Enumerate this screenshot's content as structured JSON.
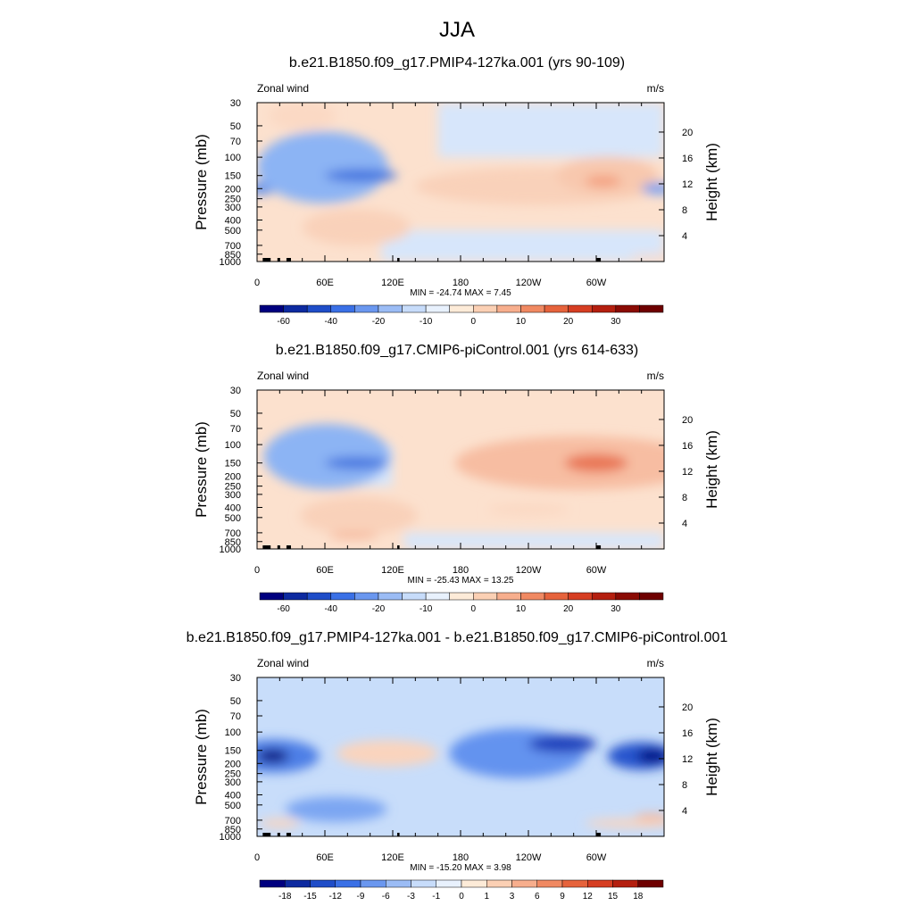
{
  "figure": {
    "title": "JJA"
  },
  "chart_data": [
    {
      "type": "heatmap",
      "title": "b.e21.B1850.f09_g17.PMIP4-127ka.001 (yrs 90-109)",
      "left_string": "Zonal wind",
      "right_string": "m/s",
      "xlabel": "",
      "ylabel": "Pressure (mb)",
      "y2label": "Height (km)",
      "x_ticks": [
        "0",
        "60E",
        "120E",
        "180",
        "120W",
        "60W"
      ],
      "x_range": [
        0,
        360
      ],
      "y_range_mb": [
        1000,
        30
      ],
      "y_ticks_mb": [
        "30",
        "50",
        "70",
        "100",
        "150",
        "200",
        "250",
        "300",
        "400",
        "500",
        "700",
        "850",
        "1000"
      ],
      "y2_ticks_km": [
        "20",
        "16",
        "12",
        "8",
        "4"
      ],
      "stats_label": "MIN = -24.74  MAX =   7.45",
      "min": -24.74,
      "max": 7.45,
      "colorbar_labels": [
        "-60",
        "-40",
        "-20",
        "-10",
        "0",
        "10",
        "20",
        "30"
      ],
      "colorbar_colors": [
        "#00007f",
        "#0d2aa0",
        "#1f4dc8",
        "#3a70e6",
        "#6a97ef",
        "#9bbcf5",
        "#c7dcfa",
        "#e8f1fd",
        "#fdebd8",
        "#fbd0b4",
        "#f7ae8d",
        "#f08962",
        "#e6633c",
        "#d63e22",
        "#b41f0f",
        "#8a0b04",
        "#6e0000"
      ],
      "anomalies": [
        {
          "lon": 4,
          "p": 200,
          "w": 12,
          "h": 50,
          "v": -10
        },
        {
          "lon": 58,
          "p": 125,
          "w": 58,
          "h": 165,
          "v": -6
        },
        {
          "lon": 92,
          "p": 150,
          "w": 32,
          "h": 42,
          "v": -12
        },
        {
          "lon": 88,
          "p": 470,
          "w": 48,
          "h": 360,
          "v": 4
        },
        {
          "lon": 250,
          "p": 190,
          "w": 110,
          "h": 150,
          "v": 4
        },
        {
          "lon": 310,
          "p": 150,
          "w": 45,
          "h": 120,
          "v": 5
        },
        {
          "lon": 306,
          "p": 170,
          "w": 16,
          "h": 40,
          "v": 9
        },
        {
          "lon": 354,
          "p": 200,
          "w": 14,
          "h": 50,
          "v": -8
        },
        {
          "lon": 40,
          "p": 40,
          "w": 30,
          "h": 35,
          "v": 3
        },
        {
          "lon": 350,
          "p": 900,
          "w": 20,
          "h": 100,
          "v": 3
        }
      ],
      "background_value": 2,
      "background_cells": [
        {
          "lon": [
            110,
            360
          ],
          "p": [
            1000,
            500
          ],
          "v": -1
        },
        {
          "lon": [
            160,
            360
          ],
          "p": [
            100,
            30
          ],
          "v": -1
        }
      ]
    },
    {
      "type": "heatmap",
      "title": "b.e21.B1850.f09_g17.CMIP6-piControl.001 (yrs 614-633)",
      "left_string": "Zonal wind",
      "right_string": "m/s",
      "xlabel": "",
      "ylabel": "Pressure (mb)",
      "y2label": "Height (km)",
      "x_ticks": [
        "0",
        "60E",
        "120E",
        "180",
        "120W",
        "60W"
      ],
      "x_range": [
        0,
        360
      ],
      "y_range_mb": [
        1000,
        30
      ],
      "y_ticks_mb": [
        "30",
        "50",
        "70",
        "100",
        "150",
        "200",
        "250",
        "300",
        "400",
        "500",
        "700",
        "850",
        "1000"
      ],
      "y2_ticks_km": [
        "20",
        "16",
        "12",
        "8",
        "4"
      ],
      "stats_label": "MIN = -25.43  MAX =  13.25",
      "min": -25.43,
      "max": 13.25,
      "colorbar_labels": [
        "-60",
        "-40",
        "-20",
        "-10",
        "0",
        "10",
        "20",
        "30"
      ],
      "colorbar_colors": [
        "#00007f",
        "#0d2aa0",
        "#1f4dc8",
        "#3a70e6",
        "#6a97ef",
        "#9bbcf5",
        "#c7dcfa",
        "#e8f1fd",
        "#fdebd8",
        "#fbd0b4",
        "#f7ae8d",
        "#f08962",
        "#e6633c",
        "#d63e22",
        "#b41f0f",
        "#8a0b04",
        "#6e0000"
      ],
      "anomalies": [
        {
          "lon": 62,
          "p": 130,
          "w": 56,
          "h": 160,
          "v": -6
        },
        {
          "lon": 88,
          "p": 150,
          "w": 28,
          "h": 40,
          "v": -12
        },
        {
          "lon": 90,
          "p": 480,
          "w": 52,
          "h": 380,
          "v": 4
        },
        {
          "lon": 85,
          "p": 750,
          "w": 22,
          "h": 80,
          "v": 8
        },
        {
          "lon": 285,
          "p": 150,
          "w": 110,
          "h": 160,
          "v": 6
        },
        {
          "lon": 300,
          "p": 150,
          "w": 28,
          "h": 60,
          "v": 12
        },
        {
          "lon": 240,
          "p": 420,
          "w": 36,
          "h": 120,
          "v": 3
        }
      ],
      "background_value": 2,
      "background_cells": [
        {
          "lon": [
            130,
            360
          ],
          "p": [
            1000,
            700
          ],
          "v": -1
        },
        {
          "lon": [
            40,
            120
          ],
          "p": [
            250,
            100
          ],
          "v": -1
        }
      ]
    },
    {
      "type": "heatmap",
      "title": "b.e21.B1850.f09_g17.PMIP4-127ka.001 - b.e21.B1850.f09_g17.CMIP6-piControl.001",
      "left_string": "Zonal wind",
      "right_string": "m/s",
      "xlabel": "",
      "ylabel": "Pressure (mb)",
      "y2label": "Height (km)",
      "x_ticks": [
        "0",
        "60E",
        "120E",
        "180",
        "120W",
        "60W"
      ],
      "x_range": [
        0,
        360
      ],
      "y_range_mb": [
        1000,
        30
      ],
      "y_ticks_mb": [
        "30",
        "50",
        "70",
        "100",
        "150",
        "200",
        "250",
        "300",
        "400",
        "500",
        "700",
        "850",
        "1000"
      ],
      "y2_ticks_km": [
        "20",
        "16",
        "12",
        "8",
        "4"
      ],
      "stats_label": "MIN = -15.20  MAX =   3.98",
      "min": -15.2,
      "max": 3.98,
      "colorbar_labels": [
        "-18",
        "-15",
        "-12",
        "-9",
        "-6",
        "-3",
        "-1",
        "0",
        "1",
        "3",
        "6",
        "9",
        "12",
        "15",
        "18"
      ],
      "colorbar_colors": [
        "#00007f",
        "#0d2aa0",
        "#1f4dc8",
        "#3a70e6",
        "#6a97ef",
        "#9bbcf5",
        "#c7dcfa",
        "#e8f1fd",
        "#fdebd8",
        "#fbd0b4",
        "#f7ae8d",
        "#f08962",
        "#e6633c",
        "#d63e22",
        "#b41f0f",
        "#6e0000"
      ],
      "anomalies": [
        {
          "lon": 15,
          "p": 170,
          "w": 40,
          "h": 120,
          "v": -6
        },
        {
          "lon": 14,
          "p": 170,
          "w": 14,
          "h": 50,
          "v": -14
        },
        {
          "lon": 115,
          "p": 160,
          "w": 45,
          "h": 90,
          "v": 2
        },
        {
          "lon": 230,
          "p": 160,
          "w": 60,
          "h": 160,
          "v": -5
        },
        {
          "lon": 270,
          "p": 130,
          "w": 30,
          "h": 50,
          "v": -9
        },
        {
          "lon": 340,
          "p": 170,
          "w": 30,
          "h": 100,
          "v": -8
        },
        {
          "lon": 350,
          "p": 170,
          "w": 14,
          "h": 50,
          "v": -12
        },
        {
          "lon": 70,
          "p": 550,
          "w": 45,
          "h": 300,
          "v": -4
        },
        {
          "lon": 20,
          "p": 750,
          "w": 18,
          "h": 150,
          "v": 2
        },
        {
          "lon": 330,
          "p": 750,
          "w": 40,
          "h": 150,
          "v": 2
        },
        {
          "lon": 350,
          "p": 650,
          "w": 16,
          "h": 80,
          "v": 4
        }
      ],
      "background_value": -1,
      "background_cells": []
    }
  ]
}
